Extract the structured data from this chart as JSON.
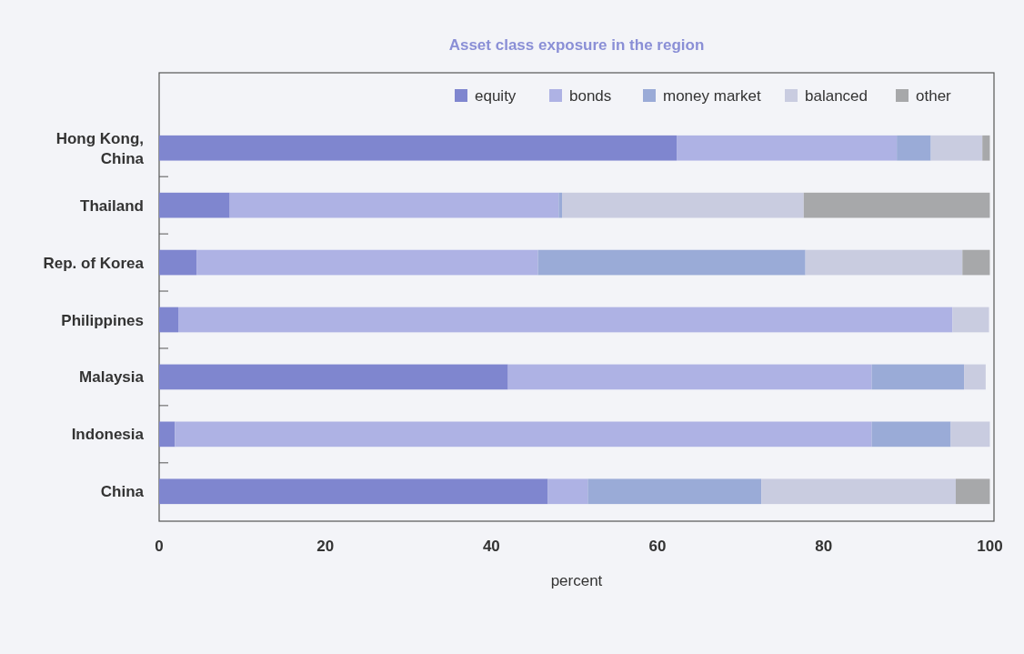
{
  "chart_data": {
    "type": "bar",
    "orientation": "horizontal",
    "stacked": true,
    "title": "Asset class exposure in the region",
    "xlabel": "percent",
    "categories": [
      "Hong Kong, China",
      "Thailand",
      "Rep. of Korea",
      "Philippines",
      "Malaysia",
      "Indonesia",
      "China"
    ],
    "series": [
      {
        "name": "equity",
        "color": "#7f86cf",
        "values": [
          62.3,
          8.5,
          4.5,
          2.3,
          42.0,
          1.9,
          46.8
        ]
      },
      {
        "name": "bonds",
        "color": "#aeb2e4",
        "values": [
          26.5,
          39.6,
          41.1,
          93.2,
          43.8,
          83.9,
          4.8
        ]
      },
      {
        "name": "money market",
        "color": "#9aabd7",
        "values": [
          4.1,
          0.4,
          32.2,
          0,
          11.1,
          9.5,
          20.9
        ]
      },
      {
        "name": "balanced",
        "color": "#c9cce0",
        "values": [
          6.2,
          29.1,
          18.9,
          4.4,
          2.6,
          4.7,
          23.4
        ]
      },
      {
        "name": "other",
        "color": "#a7a8aa",
        "values": [
          0.9,
          22.4,
          3.3,
          0,
          0,
          0,
          4.1
        ]
      }
    ],
    "xlim": [
      0,
      100.5
    ],
    "xticks": [
      0,
      20,
      40,
      60,
      80,
      100
    ],
    "grid": false,
    "legend": "top right"
  }
}
